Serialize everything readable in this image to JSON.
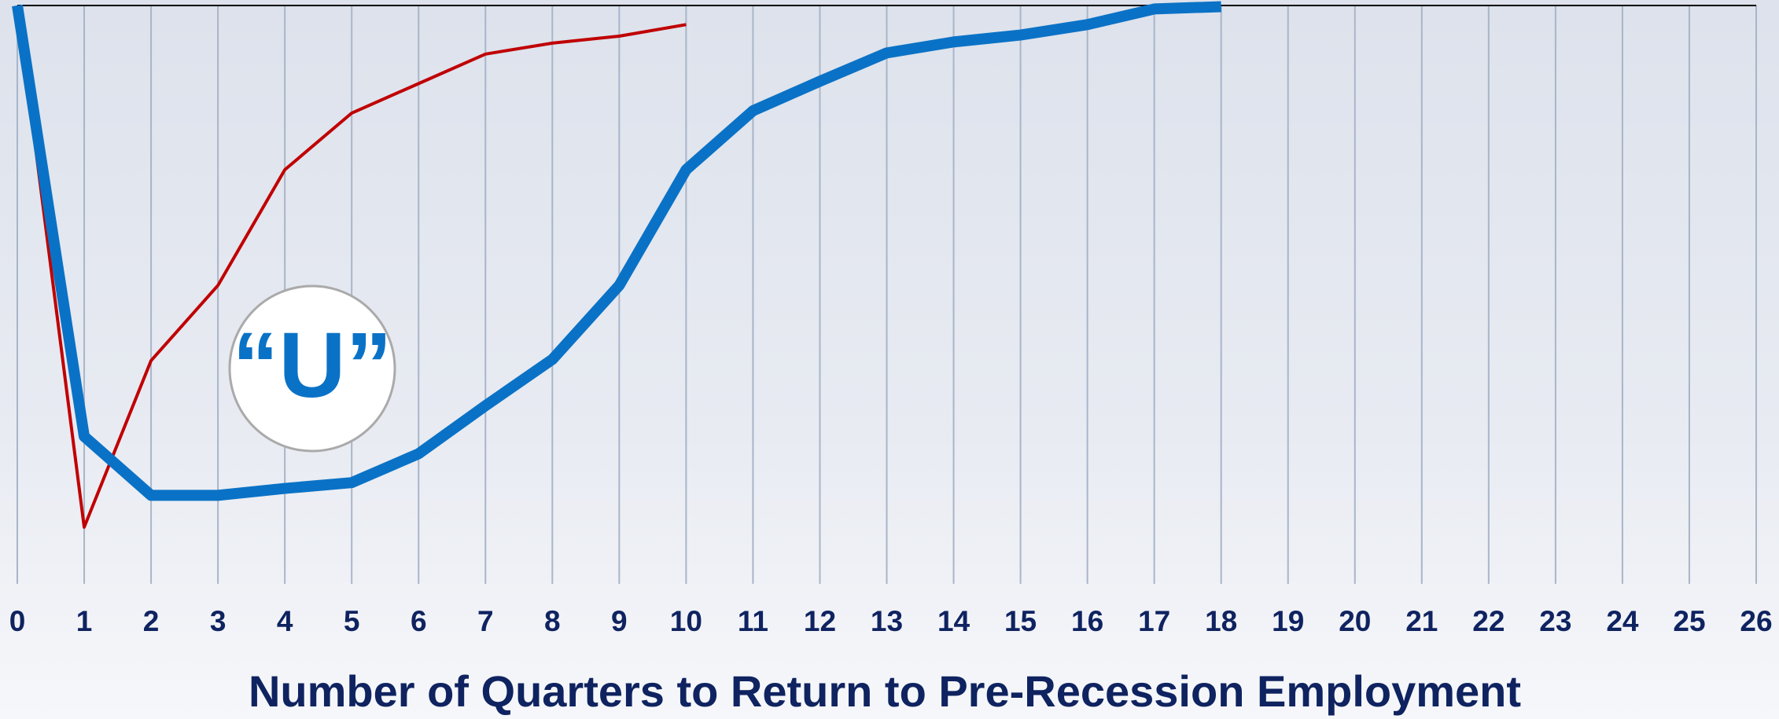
{
  "chart_data": {
    "type": "line",
    "xlabel": "Number of Quarters to Return to Pre-Recession Employment",
    "annotation": "“U”",
    "xlim": [
      0,
      26
    ],
    "xticks": [
      0,
      1,
      2,
      3,
      4,
      5,
      6,
      7,
      8,
      9,
      10,
      11,
      12,
      13,
      14,
      15,
      16,
      17,
      18,
      19,
      20,
      21,
      22,
      23,
      24,
      25,
      26
    ],
    "ylim": [
      -100,
      0
    ],
    "grid": true,
    "series": [
      {
        "color": "#c00000",
        "width": 4,
        "x": [
          0,
          1,
          2,
          3,
          4,
          5,
          6,
          7,
          8,
          9,
          10
        ],
        "values": [
          0,
          -90.2,
          -61.4,
          -48.4,
          -28.4,
          -18.6,
          -13.5,
          -8.4,
          -6.5,
          -5.3,
          -3.3
        ]
      },
      {
        "color": "#0a72c6",
        "width": 14,
        "x": [
          0,
          1,
          2,
          3,
          4,
          5,
          6,
          7,
          8,
          9,
          10,
          11,
          12,
          13,
          14,
          15,
          16,
          17,
          18
        ],
        "values": [
          0,
          -74.5,
          -84.7,
          -84.7,
          -83.5,
          -82.5,
          -77.5,
          -69.2,
          -61.2,
          -48.4,
          -28.4,
          -18.2,
          -13.1,
          -8.2,
          -6.3,
          -5.1,
          -3.3,
          -0.6,
          -0.2
        ]
      }
    ]
  }
}
